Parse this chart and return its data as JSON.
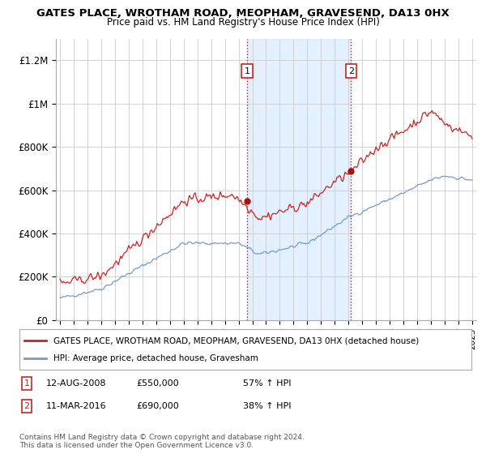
{
  "title": "GATES PLACE, WROTHAM ROAD, MEOPHAM, GRAVESEND, DA13 0HX",
  "subtitle": "Price paid vs. HM Land Registry's House Price Index (HPI)",
  "ylim": [
    0,
    1300000
  ],
  "yticks": [
    0,
    200000,
    400000,
    600000,
    800000,
    1000000,
    1200000
  ],
  "ytick_labels": [
    "£0",
    "£200K",
    "£400K",
    "£600K",
    "£800K",
    "£1M",
    "£1.2M"
  ],
  "background_color": "#ffffff",
  "plot_bg_color": "#ffffff",
  "grid_color": "#cccccc",
  "legend_line1_color": "#cc2222",
  "legend_line2_color": "#7799cc",
  "legend_label1": "GATES PLACE, WROTHAM ROAD, MEOPHAM, GRAVESEND, DA13 0HX (detached house)",
  "legend_label2": "HPI: Average price, detached house, Gravesham",
  "transaction1_date": "12-AUG-2008",
  "transaction1_price": "£550,000",
  "transaction1_hpi": "57% ↑ HPI",
  "transaction1_year": 2008.62,
  "transaction1_value": 550000,
  "transaction2_date": "11-MAR-2016",
  "transaction2_price": "£690,000",
  "transaction2_hpi": "38% ↑ HPI",
  "transaction2_year": 2016.19,
  "transaction2_value": 690000,
  "footer": "Contains HM Land Registry data © Crown copyright and database right 2024.\nThis data is licensed under the Open Government Licence v3.0.",
  "shade_color": "#ddeeff",
  "marker_color": "#aa1111"
}
